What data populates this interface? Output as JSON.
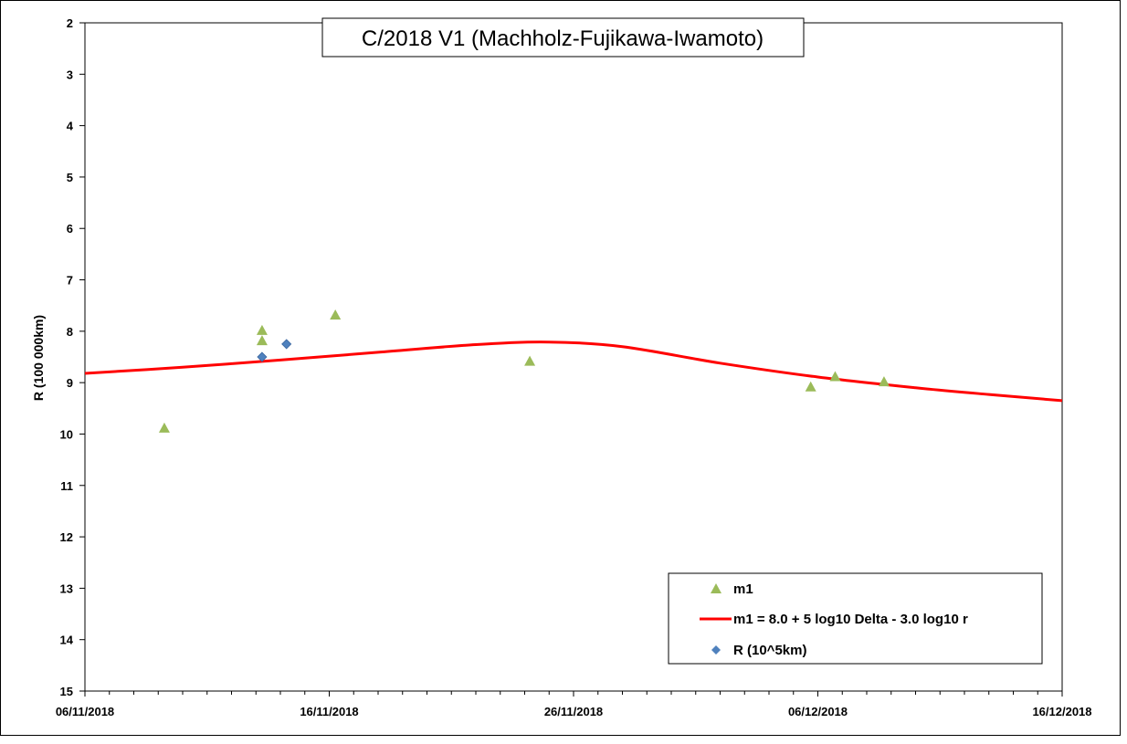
{
  "chart_data": {
    "type": "scatter",
    "title": "C/2018 V1 (Machholz-Fujikawa-Iwamoto)",
    "xlabel": "",
    "ylabel": "R (100 000km)",
    "x_range": [
      "2018-11-06",
      "2018-12-16"
    ],
    "ylim": [
      2,
      15
    ],
    "y_inverted": true,
    "y_ticks": [
      2,
      3,
      4,
      5,
      6,
      7,
      8,
      9,
      10,
      11,
      12,
      13,
      14,
      15
    ],
    "x_ticks": [
      "06/11/2018",
      "16/11/2018",
      "26/11/2018",
      "06/12/2018",
      "16/12/2018"
    ],
    "grid": false,
    "legend_position": "bottom-right",
    "series": [
      {
        "name": "m1",
        "kind": "scatter",
        "marker": "triangle",
        "color": "#9BBB59",
        "points": [
          {
            "x": "2018-11-09 06:00",
            "y": 9.9
          },
          {
            "x": "2018-11-13 06:00",
            "y": 8.0
          },
          {
            "x": "2018-11-13 06:00",
            "y": 8.2
          },
          {
            "x": "2018-11-16 06:00",
            "y": 7.7
          },
          {
            "x": "2018-11-24 05:00",
            "y": 8.6
          },
          {
            "x": "2018-12-05 17:00",
            "y": 9.1
          },
          {
            "x": "2018-12-06 17:00",
            "y": 8.9
          },
          {
            "x": "2018-12-08 17:00",
            "y": 9.0
          }
        ]
      },
      {
        "name": "m1 = 8.0 + 5 log10 Delta - 3.0 log10 r",
        "kind": "line",
        "color": "#FF0000",
        "points": [
          {
            "x": "2018-11-06 00:00",
            "y": 8.82
          },
          {
            "x": "2018-11-10 00:00",
            "y": 8.7
          },
          {
            "x": "2018-11-14 00:00",
            "y": 8.56
          },
          {
            "x": "2018-11-18 00:00",
            "y": 8.41
          },
          {
            "x": "2018-11-22 00:00",
            "y": 8.26
          },
          {
            "x": "2018-11-25 00:00",
            "y": 8.21
          },
          {
            "x": "2018-11-28 00:00",
            "y": 8.3
          },
          {
            "x": "2018-12-02 00:00",
            "y": 8.62
          },
          {
            "x": "2018-12-06 00:00",
            "y": 8.89
          },
          {
            "x": "2018-12-10 00:00",
            "y": 9.1
          },
          {
            "x": "2018-12-13 00:00",
            "y": 9.23
          },
          {
            "x": "2018-12-16 00:00",
            "y": 9.35
          }
        ]
      },
      {
        "name": "R (10^5km)",
        "kind": "scatter",
        "marker": "diamond",
        "color": "#4F81BD",
        "points": [
          {
            "x": "2018-11-13 06:00",
            "y": 8.5
          },
          {
            "x": "2018-11-14 06:00",
            "y": 8.25
          }
        ]
      }
    ]
  }
}
